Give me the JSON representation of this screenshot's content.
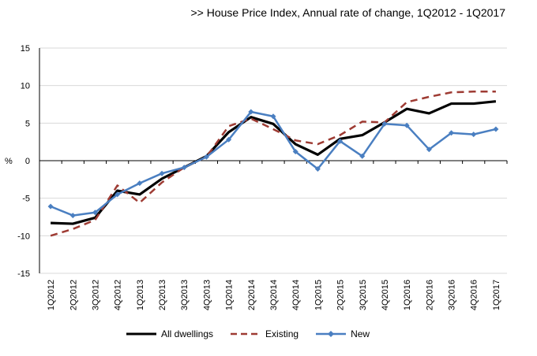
{
  "chart_data": {
    "type": "line",
    "title": ">> House Price Index, Annual rate of change, 1Q2012 - 1Q2017",
    "xlabel": "",
    "ylabel": "%",
    "ylim": [
      -15,
      15
    ],
    "yticks": [
      15,
      10,
      5,
      0,
      -5,
      -10,
      -15
    ],
    "grid": "horizontal",
    "legend_position": "bottom",
    "categories": [
      "1Q2012",
      "2Q2012",
      "3Q2012",
      "4Q2012",
      "1Q2013",
      "2Q2013",
      "3Q2013",
      "4Q2013",
      "1Q2014",
      "2Q2014",
      "3Q2014",
      "4Q2014",
      "1Q2015",
      "2Q2015",
      "3Q2015",
      "4Q2015",
      "1Q2016",
      "2Q2016",
      "3Q2016",
      "4Q2016",
      "1Q2017"
    ],
    "series": [
      {
        "name": "All dwellings",
        "color": "#000000",
        "style": "solid",
        "values": [
          -8.3,
          -8.4,
          -7.6,
          -4.0,
          -4.5,
          -2.4,
          -0.9,
          0.6,
          3.8,
          5.8,
          4.9,
          2.2,
          0.8,
          2.9,
          3.4,
          5.1,
          6.9,
          6.3,
          7.6,
          7.6,
          7.9
        ]
      },
      {
        "name": "Existing",
        "color": "#9e3b33",
        "style": "dashed",
        "values": [
          -10.0,
          -9.1,
          -7.9,
          -3.3,
          -5.6,
          -2.9,
          -0.9,
          0.5,
          4.6,
          5.6,
          4.2,
          2.7,
          2.2,
          3.4,
          5.2,
          5.1,
          7.8,
          8.5,
          9.1,
          9.2,
          9.2
        ]
      },
      {
        "name": "New",
        "color": "#4a7fc1",
        "style": "solid-marker",
        "values": [
          -6.1,
          -7.3,
          -6.9,
          -4.5,
          -3.0,
          -1.7,
          -0.9,
          0.5,
          2.8,
          6.5,
          5.9,
          1.2,
          -1.1,
          2.6,
          0.6,
          4.9,
          4.7,
          1.5,
          3.7,
          3.5,
          4.2
        ]
      }
    ]
  }
}
